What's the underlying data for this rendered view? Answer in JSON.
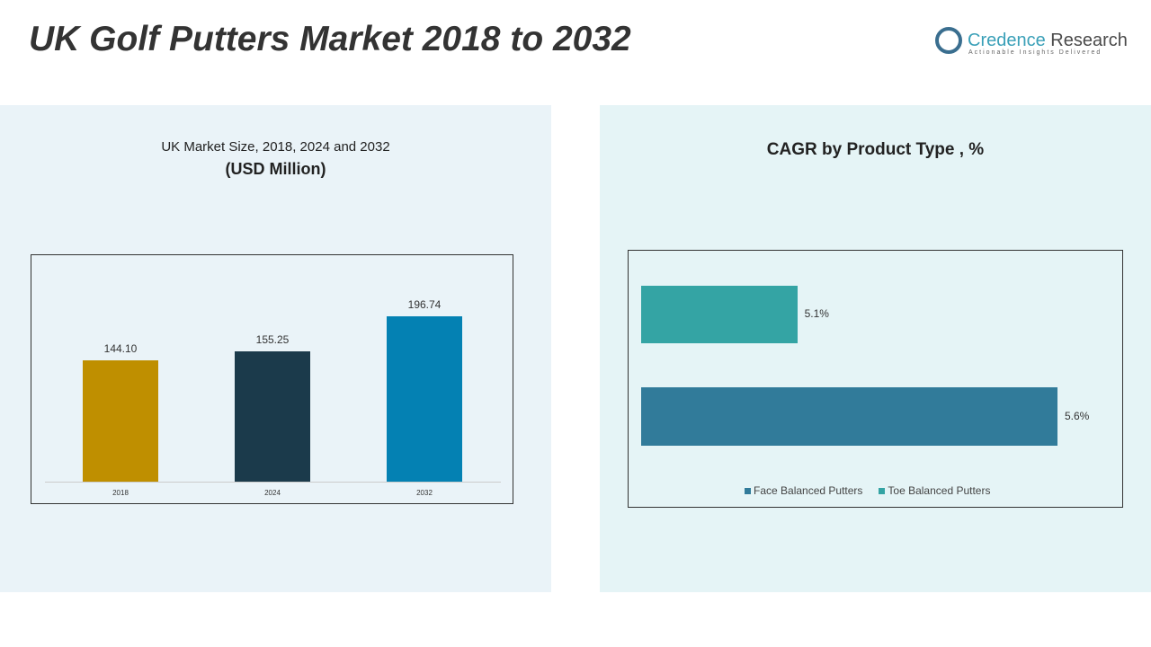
{
  "title": "UK Golf Putters Market 2018 to 2032",
  "logo": {
    "name1": "Credence",
    "name2": " Research",
    "tagline": "Actionable Insights Delivered"
  },
  "chart_data": [
    {
      "type": "bar",
      "title": "UK Market Size, 2018, 2024 and 2032",
      "subtitle": "(USD Million)",
      "categories": [
        "2018",
        "2024",
        "2032"
      ],
      "values": [
        144.1,
        155.25,
        196.74
      ],
      "labels": [
        "144.10",
        "155.25",
        "196.74"
      ],
      "colors": [
        "#bf8f00",
        "#1b3a4b",
        "#0481b3"
      ],
      "ylim": [
        0,
        210
      ]
    },
    {
      "type": "bar",
      "orientation": "horizontal",
      "title": "CAGR by Product Type , %",
      "series": [
        {
          "name": "Toe Balanced Putters",
          "value": 5.1,
          "label": "5.1%",
          "color": "#34a4a4"
        },
        {
          "name": "Face Balanced Putters",
          "value": 5.6,
          "label": "5.6%",
          "color": "#317b9a"
        }
      ],
      "legend": [
        "Face Balanced Putters",
        "Toe Balanced Putters"
      ],
      "xlim": [
        4.8,
        5.6
      ]
    }
  ]
}
